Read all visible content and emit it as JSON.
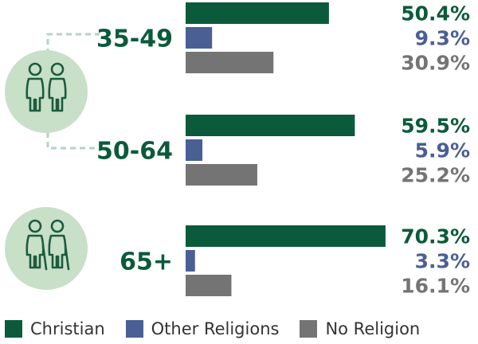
{
  "chart_data": {
    "type": "bar",
    "orientation": "horizontal",
    "groups": [
      {
        "label": "35-49",
        "values": [
          50.4,
          9.3,
          30.9
        ],
        "value_labels": [
          "50.4%",
          "9.3%",
          "30.9%"
        ]
      },
      {
        "label": "50-64",
        "values": [
          59.5,
          5.9,
          25.2
        ],
        "value_labels": [
          "59.5%",
          "5.9%",
          "25.2%"
        ]
      },
      {
        "label": "65+",
        "values": [
          70.3,
          3.3,
          16.1
        ],
        "value_labels": [
          "70.3%",
          "3.3%",
          "16.1%"
        ]
      }
    ],
    "series": [
      {
        "name": "Christian",
        "color": "#0b5a3c"
      },
      {
        "name": "Other Religions",
        "color": "#4a5f94"
      },
      {
        "name": "No Religion",
        "color": "#747474"
      }
    ],
    "xlim": [
      0,
      72
    ],
    "grid": false,
    "legend": "bottom",
    "icons": [
      "middle-aged-couple-icon",
      "elderly-couple-icon"
    ],
    "icon_color": "#1c5c3e",
    "icon_bg": "#c8dfc8",
    "connector_color": "#b5d3c3"
  }
}
